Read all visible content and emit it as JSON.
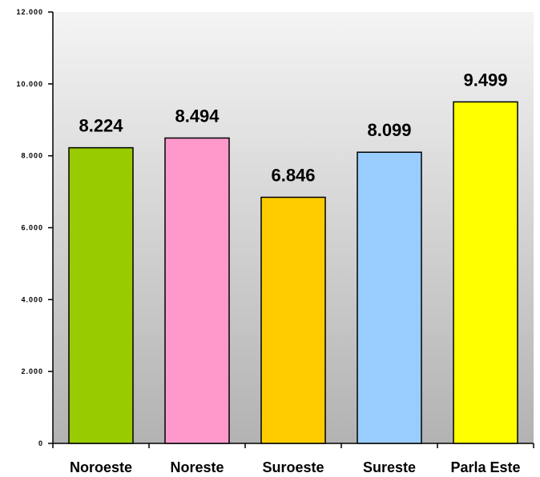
{
  "chart_data": {
    "type": "bar",
    "categories": [
      "Noroeste",
      "Noreste",
      "Suroeste",
      "Sureste",
      "Parla Este"
    ],
    "values": [
      8224,
      8494,
      6846,
      8099,
      9499
    ],
    "value_labels": [
      "8.224",
      "8.494",
      "6.846",
      "8.099",
      "9.499"
    ],
    "colors": [
      "#99cc00",
      "#ff99cc",
      "#ffcc00",
      "#99ccff",
      "#ffff00"
    ],
    "ylim": [
      0,
      12000
    ],
    "yticks": [
      0,
      2000,
      4000,
      6000,
      8000,
      10000,
      12000
    ],
    "ytick_labels": [
      "0",
      "2.000",
      "4.000",
      "6.000",
      "8.000",
      "10.000",
      "12.000"
    ],
    "title": "",
    "xlabel": "",
    "ylabel": "",
    "grid": false,
    "background": "gradient light-gray to gray"
  }
}
